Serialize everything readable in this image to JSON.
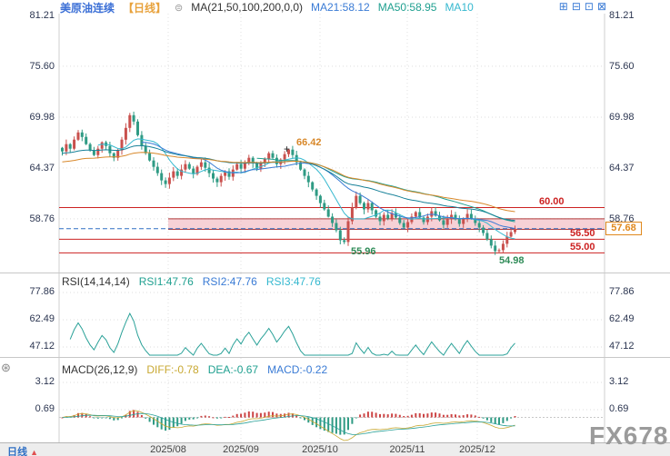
{
  "header": {
    "symbol": "美原油连续",
    "period_tag": "【日线】",
    "ma_label": "MA(21,50,100,200,0,0)",
    "ma21": "MA21:58.12",
    "ma50": "MA50:58.95",
    "ma10": "MA10"
  },
  "icons": {
    "settings": "⊜",
    "layout": [
      "⊞",
      "⊟",
      "⊡",
      "⊠"
    ],
    "tool": "⊛",
    "up_arrow": "▲",
    "plus_marker": "+"
  },
  "main_axis": [
    "81.21",
    "75.60",
    "69.98",
    "64.37",
    "58.76"
  ],
  "levels": {
    "l60": "60.00",
    "l5650": "56.50",
    "l5500": "55.00",
    "current": "57.68",
    "low_oct": "55.96",
    "low_dec": "54.98",
    "peak": "66.42"
  },
  "rsi": {
    "label": "RSI(14,14,14)",
    "rsi1": "RSI1:47.76",
    "rsi2": "RSI2:47.76",
    "rsi3": "RSI3:47.76",
    "axis": [
      "77.86",
      "62.49",
      "47.12"
    ]
  },
  "macd": {
    "label": "MACD(26,12,9)",
    "diff": "DIFF:-0.78",
    "dea": "DEA:-0.67",
    "macd": "MACD:-0.22",
    "axis": [
      "3.12",
      "0.69"
    ]
  },
  "xaxis": {
    "period": "日线",
    "arrow": "▲",
    "dates": [
      "2025/08",
      "2025/09",
      "2025/10",
      "2025/11",
      "2025/12"
    ]
  },
  "watermark": "FX678",
  "chart_data": {
    "type": "candlestick",
    "title": "美原油连续 日线 (US Crude Oil Continuous, Daily)",
    "x_labels": [
      "2025/08",
      "2025/09",
      "2025/10",
      "2025/11",
      "2025/12"
    ],
    "y_axis_ticks": [
      81.21,
      75.6,
      69.98,
      64.37,
      58.76
    ],
    "closes": [
      66.2,
      67.0,
      66.5,
      67.5,
      68.3,
      67.8,
      67.0,
      66.3,
      65.8,
      66.5,
      67.2,
      66.8,
      66.0,
      65.5,
      66.3,
      67.5,
      68.8,
      70.2,
      69.5,
      68.0,
      66.8,
      66.0,
      65.2,
      64.5,
      63.8,
      63.0,
      62.6,
      63.3,
      64.0,
      63.5,
      64.2,
      64.8,
      64.3,
      63.7,
      64.5,
      65.0,
      64.4,
      63.8,
      63.2,
      62.8,
      63.5,
      64.0,
      63.4,
      64.2,
      64.8,
      64.3,
      65.0,
      65.5,
      64.9,
      64.3,
      64.9,
      65.4,
      66.0,
      65.5,
      64.8,
      65.3,
      65.9,
      66.4,
      65.8,
      65.0,
      64.2,
      63.5,
      62.8,
      62.0,
      61.3,
      60.5,
      59.8,
      59.0,
      58.3,
      57.5,
      56.4,
      56.2,
      58.5,
      60.0,
      61.3,
      60.5,
      59.8,
      60.5,
      59.7,
      59.0,
      58.5,
      59.2,
      58.8,
      59.4,
      58.9,
      58.3,
      57.8,
      58.4,
      59.0,
      59.5,
      58.9,
      58.4,
      59.0,
      59.6,
      59.1,
      58.6,
      58.1,
      58.7,
      59.2,
      58.7,
      58.2,
      58.8,
      59.3,
      58.8,
      58.3,
      57.8,
      57.2,
      56.5,
      55.8,
      55.2,
      55.3,
      56.0,
      56.8,
      57.3,
      57.68
    ],
    "high_overrides": {
      "17": 70.45,
      "57": 66.42
    },
    "low_overrides": {
      "71": 55.96,
      "110": 54.98
    },
    "horizontal_levels": [
      60.0,
      58.76,
      57.68,
      56.5,
      55.0
    ],
    "current_price": 57.68,
    "annotations": {
      "peak_high": 66.42,
      "oct_low": 55.96,
      "dec_low": 54.98
    },
    "moving_averages": {
      "ma21": 58.12,
      "ma50": 58.95
    },
    "rsi_panel": {
      "ticks": [
        77.86,
        62.49,
        47.12
      ],
      "rsi1": 47.76,
      "rsi2": 47.76,
      "rsi3": 47.76
    },
    "macd_panel": {
      "ticks": [
        3.12,
        0.69
      ],
      "diff": -0.78,
      "dea": -0.67,
      "macd": -0.22
    }
  }
}
